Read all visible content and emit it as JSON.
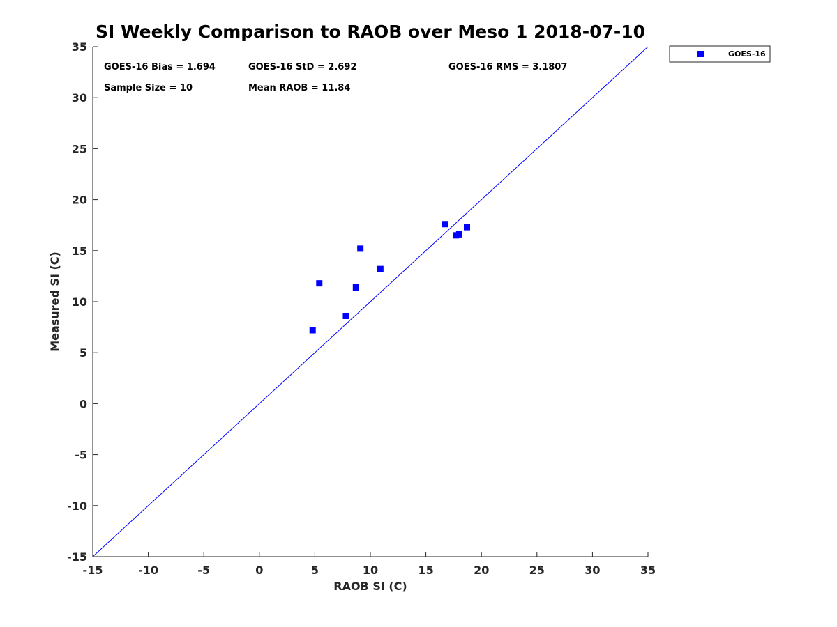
{
  "chart_data": {
    "type": "scatter",
    "title": "SI Weekly Comparison to RAOB over Meso 1 2018-07-10",
    "xlabel": "RAOB SI (C)",
    "ylabel": "Measured SI (C)",
    "xlim": [
      -15,
      35
    ],
    "ylim": [
      -15,
      35
    ],
    "xticks": [
      -15,
      -10,
      -5,
      0,
      5,
      10,
      15,
      20,
      25,
      30,
      35
    ],
    "yticks": [
      -15,
      -10,
      -5,
      0,
      5,
      10,
      15,
      20,
      25,
      30,
      35
    ],
    "xtick_labels": [
      "-15",
      "-10",
      "-5",
      "0",
      "5",
      "10",
      "15",
      "20",
      "25",
      "30",
      "35"
    ],
    "ytick_labels": [
      "-15",
      "-10",
      "-5",
      "0",
      "5",
      "10",
      "15",
      "20",
      "25",
      "30",
      "35"
    ],
    "grid": false,
    "legend_position": "outside-top-right",
    "series": [
      {
        "name": "GOES-16",
        "color": "#0000ff",
        "marker": "square",
        "points": [
          {
            "x": 4.8,
            "y": 7.2
          },
          {
            "x": 5.4,
            "y": 11.8
          },
          {
            "x": 7.8,
            "y": 8.6
          },
          {
            "x": 8.7,
            "y": 11.4
          },
          {
            "x": 9.1,
            "y": 15.2
          },
          {
            "x": 10.9,
            "y": 13.2
          },
          {
            "x": 16.7,
            "y": 17.6
          },
          {
            "x": 17.7,
            "y": 16.5
          },
          {
            "x": 18.0,
            "y": 16.6
          },
          {
            "x": 18.7,
            "y": 17.3
          }
        ]
      }
    ],
    "reference_line": {
      "name": "one-to-one",
      "from": [
        -15,
        -15
      ],
      "to": [
        35,
        35
      ],
      "color": "#0000ff"
    },
    "annotations": {
      "bias": "GOES-16 Bias = 1.694",
      "std": "GOES-16 StD = 2.692",
      "rms": "GOES-16 RMS = 3.1807",
      "sample_size": "Sample Size = 10",
      "mean_raob": "Mean RAOB = 11.84"
    }
  }
}
